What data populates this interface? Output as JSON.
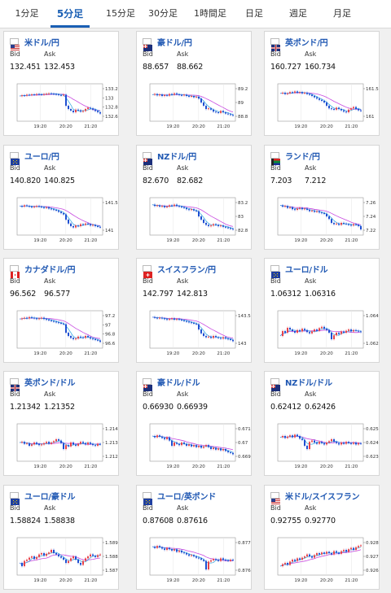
{
  "tabs": [
    "1分足",
    "5分足",
    "15分足",
    "30分足",
    "1時間足",
    "日足",
    "週足",
    "月足"
  ],
  "active_tab": 1,
  "labels": {
    "bid": "Bid",
    "ask": "Ask"
  },
  "colors": {
    "accent": "#1a5fb4",
    "up": "#e8434a",
    "down": "#1f4fd1",
    "ma_short": "#2aa6e0",
    "ma_long": "#c84be0"
  },
  "cards": [
    {
      "pair": "米ドル/円",
      "flag": "us",
      "bid": "132.451",
      "ask": "132.453",
      "yticks": [
        "133.2",
        "133",
        "132.8",
        "132.6"
      ],
      "xticks": [
        "19:20",
        "20:20",
        "21:20"
      ],
      "series": [
        0.7,
        0.72,
        0.71,
        0.74,
        0.73,
        0.75,
        0.74,
        0.76,
        0.75,
        0.74,
        0.76,
        0.77,
        0.78,
        0.77,
        0.76,
        0.75,
        0.73,
        0.72,
        0.74,
        0.4,
        0.3,
        0.25,
        0.2,
        0.28,
        0.26,
        0.22,
        0.24,
        0.3,
        0.34,
        0.32,
        0.28,
        0.24,
        0.2,
        0.16
      ]
    },
    {
      "pair": "豪ドル/円",
      "flag": "au",
      "bid": "88.657",
      "ask": "88.662",
      "yticks": [
        "89.2",
        "89",
        "88.8"
      ],
      "xticks": [
        "19:20",
        "20:20",
        "21:20"
      ],
      "series": [
        0.74,
        0.76,
        0.72,
        0.75,
        0.7,
        0.73,
        0.71,
        0.76,
        0.74,
        0.78,
        0.75,
        0.73,
        0.72,
        0.74,
        0.7,
        0.68,
        0.7,
        0.66,
        0.68,
        0.62,
        0.5,
        0.4,
        0.3,
        0.32,
        0.28,
        0.22,
        0.2,
        0.18,
        0.24,
        0.2,
        0.16,
        0.14,
        0.12,
        0.1
      ]
    },
    {
      "pair": "英ポンド/円",
      "flag": "gb",
      "bid": "160.727",
      "ask": "160.734",
      "yticks": [
        "161.5",
        "161"
      ],
      "xticks": [
        "19:20",
        "20:20",
        "21:20"
      ],
      "series": [
        0.78,
        0.8,
        0.76,
        0.78,
        0.82,
        0.8,
        0.84,
        0.8,
        0.82,
        0.78,
        0.8,
        0.76,
        0.74,
        0.7,
        0.66,
        0.62,
        0.58,
        0.55,
        0.5,
        0.4,
        0.32,
        0.3,
        0.28,
        0.34,
        0.3,
        0.26,
        0.22,
        0.2,
        0.28,
        0.32,
        0.36,
        0.3,
        0.26,
        0.24
      ]
    },
    {
      "pair": "ユーロ/円",
      "flag": "eu",
      "bid": "140.820",
      "ask": "140.825",
      "yticks": [
        "141.5",
        "141"
      ],
      "xticks": [
        "19:20",
        "20:20",
        "21:20"
      ],
      "series": [
        0.82,
        0.8,
        0.84,
        0.82,
        0.8,
        0.78,
        0.8,
        0.82,
        0.8,
        0.78,
        0.76,
        0.78,
        0.74,
        0.72,
        0.7,
        0.68,
        0.64,
        0.6,
        0.56,
        0.4,
        0.28,
        0.2,
        0.16,
        0.22,
        0.2,
        0.26,
        0.24,
        0.28,
        0.26,
        0.22,
        0.24,
        0.2,
        0.18,
        0.16
      ]
    },
    {
      "pair": "NZドル/円",
      "flag": "nz",
      "bid": "82.670",
      "ask": "82.682",
      "yticks": [
        "83.2",
        "83",
        "82.8"
      ],
      "xticks": [
        "19:20",
        "20:20",
        "21:20"
      ],
      "series": [
        0.86,
        0.82,
        0.84,
        0.8,
        0.82,
        0.78,
        0.8,
        0.84,
        0.82,
        0.86,
        0.82,
        0.8,
        0.78,
        0.76,
        0.72,
        0.7,
        0.72,
        0.68,
        0.66,
        0.5,
        0.4,
        0.3,
        0.24,
        0.2,
        0.22,
        0.26,
        0.24,
        0.2,
        0.22,
        0.18,
        0.16,
        0.14,
        0.12,
        0.1
      ]
    },
    {
      "pair": "ランド/円",
      "flag": "za",
      "bid": "7.203",
      "ask": "7.212",
      "yticks": [
        "7.26",
        "7.24",
        "7.22"
      ],
      "xticks": [
        "19:20",
        "20:20",
        "21:20"
      ],
      "series": [
        0.84,
        0.8,
        0.82,
        0.76,
        0.78,
        0.72,
        0.7,
        0.74,
        0.76,
        0.72,
        0.74,
        0.7,
        0.66,
        0.68,
        0.64,
        0.66,
        0.62,
        0.6,
        0.58,
        0.5,
        0.42,
        0.3,
        0.26,
        0.28,
        0.24,
        0.3,
        0.28,
        0.26,
        0.24,
        0.22,
        0.26,
        0.24,
        0.2,
        0.1
      ]
    },
    {
      "pair": "カナダドル/円",
      "flag": "ca",
      "bid": "96.562",
      "ask": "96.577",
      "yticks": [
        "97.2",
        "97",
        "96.8",
        "96.6"
      ],
      "xticks": [
        "19:20",
        "20:20",
        "21:20"
      ],
      "series": [
        0.82,
        0.84,
        0.86,
        0.84,
        0.88,
        0.86,
        0.84,
        0.82,
        0.84,
        0.86,
        0.82,
        0.8,
        0.78,
        0.76,
        0.74,
        0.72,
        0.7,
        0.68,
        0.66,
        0.4,
        0.3,
        0.24,
        0.2,
        0.22,
        0.28,
        0.26,
        0.24,
        0.3,
        0.26,
        0.22,
        0.2,
        0.18,
        0.16,
        0.12
      ]
    },
    {
      "pair": "スイスフラン/円",
      "flag": "ch",
      "bid": "142.797",
      "ask": "142.813",
      "yticks": [
        "143.5",
        "143"
      ],
      "xticks": [
        "19:20",
        "20:20",
        "21:20"
      ],
      "series": [
        0.88,
        0.86,
        0.84,
        0.86,
        0.84,
        0.82,
        0.8,
        0.82,
        0.84,
        0.8,
        0.82,
        0.8,
        0.78,
        0.76,
        0.74,
        0.72,
        0.7,
        0.68,
        0.66,
        0.5,
        0.38,
        0.3,
        0.26,
        0.28,
        0.24,
        0.3,
        0.26,
        0.24,
        0.22,
        0.26,
        0.22,
        0.2,
        0.18,
        0.14
      ]
    },
    {
      "pair": "ユーロ/ドル",
      "flag": "eu-us",
      "bid": "1.06312",
      "ask": "1.06316",
      "yticks": [
        "1.064",
        "1.062"
      ],
      "xticks": [
        "19:20",
        "20:20",
        "21:20"
      ],
      "series": [
        0.3,
        0.45,
        0.4,
        0.55,
        0.5,
        0.45,
        0.4,
        0.48,
        0.44,
        0.52,
        0.48,
        0.42,
        0.38,
        0.44,
        0.5,
        0.46,
        0.54,
        0.58,
        0.52,
        0.48,
        0.4,
        0.2,
        0.32,
        0.4,
        0.36,
        0.44,
        0.4,
        0.46,
        0.5,
        0.44,
        0.48,
        0.46,
        0.44,
        0.42
      ]
    },
    {
      "pair": "英ポンド/ドル",
      "flag": "gb-us",
      "bid": "1.21342",
      "ask": "1.21352",
      "yticks": [
        "1.214",
        "1.213",
        "1.212"
      ],
      "xticks": [
        "19:20",
        "20:20",
        "21:20"
      ],
      "series": [
        0.5,
        0.52,
        0.46,
        0.48,
        0.4,
        0.44,
        0.5,
        0.46,
        0.42,
        0.44,
        0.48,
        0.52,
        0.46,
        0.5,
        0.54,
        0.6,
        0.56,
        0.48,
        0.3,
        0.42,
        0.38,
        0.5,
        0.44,
        0.4,
        0.46,
        0.52,
        0.48,
        0.44,
        0.5,
        0.46,
        0.42,
        0.4,
        0.46,
        0.44
      ]
    },
    {
      "pair": "豪ドル/ドル",
      "flag": "au-us",
      "bid": "0.66930",
      "ask": "0.66939",
      "yticks": [
        "0.671",
        "0.67",
        "0.669"
      ],
      "xticks": [
        "19:20",
        "20:20",
        "21:20"
      ],
      "series": [
        0.7,
        0.66,
        0.72,
        0.68,
        0.64,
        0.6,
        0.66,
        0.56,
        0.4,
        0.5,
        0.46,
        0.42,
        0.5,
        0.46,
        0.4,
        0.44,
        0.38,
        0.42,
        0.36,
        0.4,
        0.34,
        0.38,
        0.42,
        0.36,
        0.3,
        0.34,
        0.28,
        0.32,
        0.26,
        0.3,
        0.24,
        0.2,
        0.18,
        0.14
      ]
    },
    {
      "pair": "NZドル/ドル",
      "flag": "nz-us",
      "bid": "0.62412",
      "ask": "0.62426",
      "yticks": [
        "0.625",
        "0.624",
        "0.623"
      ],
      "xticks": [
        "19:20",
        "20:20",
        "21:20"
      ],
      "series": [
        0.66,
        0.7,
        0.64,
        0.68,
        0.72,
        0.66,
        0.74,
        0.7,
        0.62,
        0.58,
        0.4,
        0.3,
        0.52,
        0.56,
        0.5,
        0.46,
        0.52,
        0.48,
        0.44,
        0.5,
        0.54,
        0.6,
        0.52,
        0.48,
        0.44,
        0.5,
        0.46,
        0.52,
        0.48,
        0.46,
        0.5,
        0.44,
        0.48,
        0.46
      ]
    },
    {
      "pair": "ユーロ/豪ドル",
      "flag": "eu-au",
      "bid": "1.58824",
      "ask": "1.58838",
      "yticks": [
        "1.589",
        "1.588",
        "1.587"
      ],
      "xticks": [
        "19:20",
        "20:20",
        "21:20"
      ],
      "series": [
        0.3,
        0.2,
        0.36,
        0.4,
        0.46,
        0.5,
        0.42,
        0.48,
        0.56,
        0.6,
        0.52,
        0.58,
        0.62,
        0.7,
        0.6,
        0.56,
        0.5,
        0.46,
        0.4,
        0.3,
        0.36,
        0.44,
        0.5,
        0.4,
        0.3,
        0.24,
        0.36,
        0.44,
        0.5,
        0.56,
        0.52,
        0.48,
        0.54,
        0.56
      ]
    },
    {
      "pair": "ユーロ/英ポンド",
      "flag": "eu-gb",
      "bid": "0.87608",
      "ask": "0.87616",
      "yticks": [
        "0.877",
        "0.876"
      ],
      "xticks": [
        "19:20",
        "20:20",
        "21:20"
      ],
      "series": [
        0.8,
        0.76,
        0.82,
        0.78,
        0.74,
        0.7,
        0.76,
        0.72,
        0.68,
        0.72,
        0.64,
        0.68,
        0.62,
        0.6,
        0.56,
        0.52,
        0.54,
        0.5,
        0.46,
        0.44,
        0.4,
        0.36,
        0.1,
        0.34,
        0.38,
        0.42,
        0.4,
        0.36,
        0.44,
        0.4,
        0.38,
        0.36,
        0.4,
        0.38
      ]
    },
    {
      "pair": "米ドル/スイスフラン",
      "flag": "us-ch",
      "bid": "0.92755",
      "ask": "0.92770",
      "yticks": [
        "0.928",
        "0.927",
        "0.926"
      ],
      "xticks": [
        "19:20",
        "20:20",
        "21:20"
      ],
      "series": [
        0.2,
        0.26,
        0.3,
        0.24,
        0.34,
        0.4,
        0.36,
        0.44,
        0.4,
        0.46,
        0.5,
        0.56,
        0.5,
        0.46,
        0.54,
        0.6,
        0.56,
        0.62,
        0.58,
        0.64,
        0.6,
        0.56,
        0.66,
        0.62,
        0.58,
        0.66,
        0.7,
        0.64,
        0.72,
        0.76,
        0.7,
        0.78,
        0.82,
        0.84
      ]
    }
  ]
}
